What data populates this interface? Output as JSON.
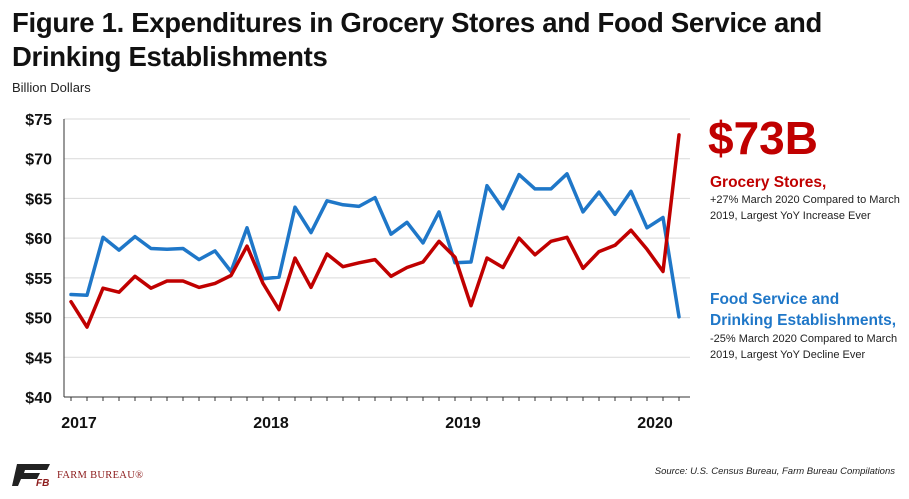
{
  "header": {
    "title": "Figure 1. Expenditures in Grocery Stores and Food Service and Drinking Establishments",
    "units": "Billion Dollars"
  },
  "callouts": {
    "value": "$73B",
    "grocery": {
      "heading": "Grocery Stores,",
      "note": "+27% March 2020 Compared to March 2019, Largest YoY Increase Ever"
    },
    "food_service": {
      "heading_line1": "Food Service and",
      "heading_line2": "Drinking Establishments,",
      "note": "-25% March 2020 Compared to March 2019, Largest YoY Decline Ever"
    }
  },
  "footer": {
    "source": "Source: U.S. Census Bureau, Farm Bureau Compilations",
    "logo_text": "FARM BUREAU®",
    "logo_mark": "FB"
  },
  "colors": {
    "grocery": "#c00000",
    "food_service": "#1f77c8",
    "grid": "#d9d9d9",
    "axis": "#333333"
  },
  "chart_data": {
    "type": "line",
    "x_start": "2017-01",
    "x_end": "2020-03",
    "ylim": [
      40,
      75
    ],
    "yticks": [
      40,
      45,
      50,
      55,
      60,
      65,
      70,
      75
    ],
    "ytick_labels": [
      "$40",
      "$45",
      "$50",
      "$55",
      "$60",
      "$65",
      "$70",
      "$75"
    ],
    "xtick_labels": [
      {
        "month": "2017-01",
        "label": "2017"
      },
      {
        "month": "2018-01",
        "label": "2018"
      },
      {
        "month": "2019-01",
        "label": "2019"
      },
      {
        "month": "2020-01",
        "label": "2020"
      }
    ],
    "grid": "horizontal",
    "series": [
      {
        "name": "Grocery Stores",
        "color_key": "grocery",
        "values": [
          52.0,
          48.8,
          53.7,
          53.2,
          55.2,
          53.7,
          54.6,
          54.6,
          53.8,
          54.3,
          55.3,
          59.0,
          54.3,
          51.0,
          57.5,
          53.8,
          58.0,
          56.4,
          56.9,
          57.3,
          55.2,
          56.3,
          57.0,
          59.6,
          57.6,
          51.5,
          57.5,
          56.3,
          60.0,
          57.9,
          59.6,
          60.1,
          56.2,
          58.3,
          59.1,
          61.0,
          58.6,
          55.8,
          73.0
        ]
      },
      {
        "name": "Food Service and Drinking Establishments",
        "color_key": "food_service",
        "values": [
          52.9,
          52.8,
          60.1,
          58.5,
          60.2,
          58.7,
          58.6,
          58.7,
          57.3,
          58.4,
          55.8,
          61.3,
          54.9,
          55.1,
          63.9,
          60.7,
          64.7,
          64.2,
          64.0,
          65.1,
          60.5,
          62.0,
          59.4,
          63.3,
          56.9,
          57.0,
          66.6,
          63.7,
          68.0,
          66.2,
          66.2,
          68.1,
          63.3,
          65.8,
          63.0,
          65.9,
          61.3,
          62.6,
          50.1
        ]
      }
    ]
  }
}
